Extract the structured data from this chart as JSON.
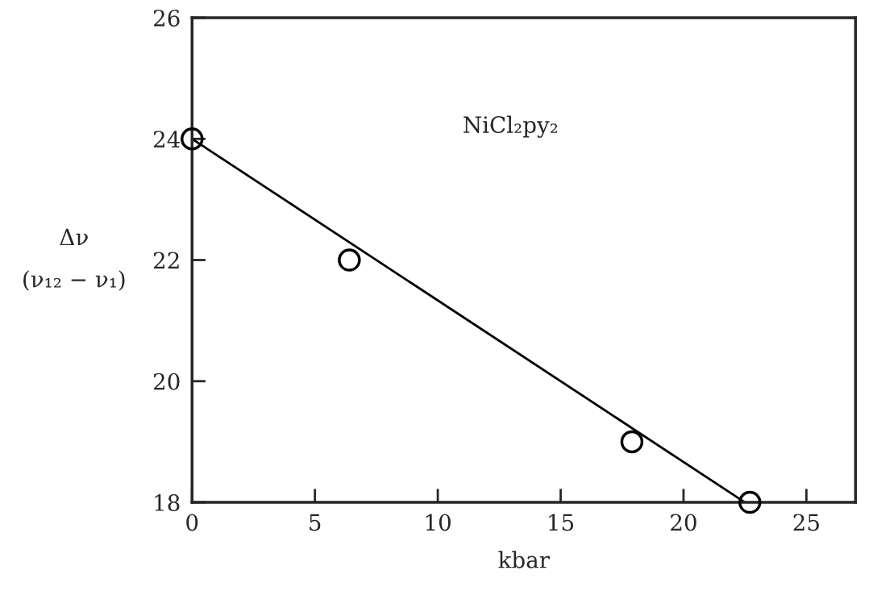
{
  "chart_data": {
    "type": "scatter",
    "xlabel": "kbar",
    "ylabel": "Δν\n(ν₁₂ − ν₁)",
    "series": [
      {
        "x": [
          0,
          6.4,
          17.9,
          22.7
        ],
        "values": [
          24,
          22,
          19,
          18
        ],
        "color": "#000000",
        "marker": "circle"
      },
      {
        "type": "line",
        "x": [
          0,
          22.5
        ],
        "values": [
          24,
          18
        ],
        "color": "#000000",
        "marker": "none",
        "line_style": "solid"
      }
    ],
    "annotations": [
      "NiCl₂py₂"
    ],
    "xlim": [
      0,
      27
    ],
    "ylim": [
      18,
      26
    ],
    "xticks": [
      0,
      5,
      10,
      15,
      20,
      25
    ],
    "yticks": [
      18,
      20,
      22,
      24,
      26
    ],
    "grid": false,
    "legend": false
  }
}
